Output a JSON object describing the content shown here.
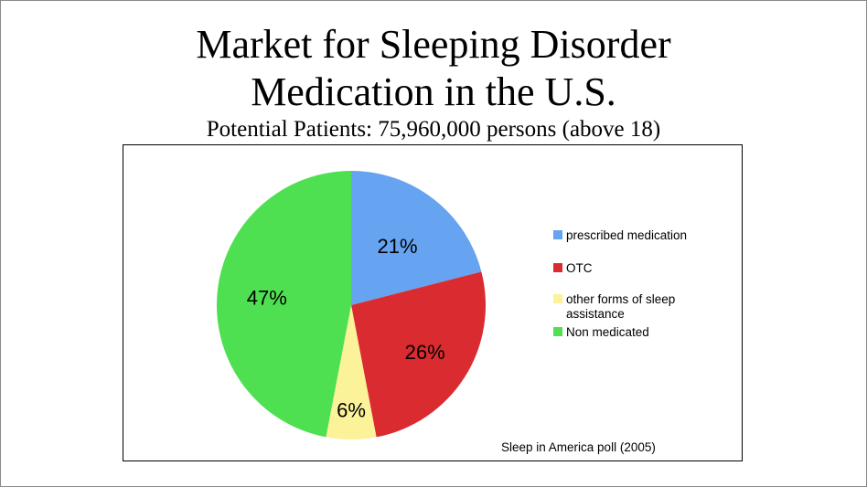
{
  "title_line1": "Market for Sleeping Disorder",
  "title_line2": "Medication in the U.S.",
  "subtitle": "Potential Patients: 75,960,000 persons (above 18)",
  "source": "Sleep in America poll (2005)",
  "chart_data": {
    "type": "pie",
    "slices": [
      {
        "name": "prescribed medication",
        "value": 21,
        "label": "21%",
        "color": "#66a3f0"
      },
      {
        "name": "OTC",
        "value": 26,
        "label": "26%",
        "color": "#d92b30"
      },
      {
        "name": "other forms of sleep assistance",
        "legend_lines": [
          "other forms of sleep",
          "assistance"
        ],
        "value": 6,
        "label": "6%",
        "color": "#fbf29a"
      },
      {
        "name": "Non medicated",
        "value": 47,
        "label": "47%",
        "color": "#4fe052"
      }
    ],
    "legend_position": "right"
  }
}
